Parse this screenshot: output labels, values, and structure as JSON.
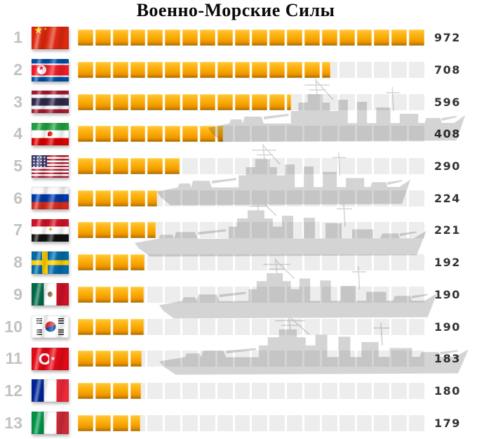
{
  "title": "Военно-Морские Силы",
  "colors": {
    "gold_light": "#ffd24a",
    "gold_top": "#ffc12b",
    "gold_mid": "#f9a602",
    "gold_dark": "#c97f00",
    "track": "#ededed",
    "rank_text": "#c2c2c2",
    "value_text": "#333333",
    "ship_watermark": "#d4d4d4",
    "title_text": "#0a0a0a"
  },
  "chart_data": {
    "type": "bar",
    "orientation": "horizontal",
    "title": "Военно-Морские Силы",
    "xlabel": "",
    "ylabel": "",
    "max_value": 972,
    "segments_total": 20,
    "grid": false,
    "legend": false,
    "watermark": "warship-silhouettes",
    "categories": [
      "China",
      "North Korea",
      "Thailand",
      "Iran",
      "United States",
      "Russia",
      "Egypt",
      "Sweden",
      "Mexico",
      "South Korea",
      "Turkey",
      "France",
      "Italy"
    ],
    "values": [
      972,
      708,
      596,
      408,
      290,
      224,
      221,
      192,
      190,
      190,
      183,
      180,
      179
    ],
    "rows": [
      {
        "rank": "1",
        "country": "China",
        "flag": "cn",
        "value": "972"
      },
      {
        "rank": "2",
        "country": "North Korea",
        "flag": "kp",
        "value": "708"
      },
      {
        "rank": "3",
        "country": "Thailand",
        "flag": "th",
        "value": "596"
      },
      {
        "rank": "4",
        "country": "Iran",
        "flag": "ir",
        "value": "408"
      },
      {
        "rank": "5",
        "country": "United States",
        "flag": "us",
        "value": "290"
      },
      {
        "rank": "6",
        "country": "Russia",
        "flag": "ru",
        "value": "224"
      },
      {
        "rank": "7",
        "country": "Egypt",
        "flag": "eg",
        "value": "221"
      },
      {
        "rank": "8",
        "country": "Sweden",
        "flag": "se",
        "value": "192"
      },
      {
        "rank": "9",
        "country": "Mexico",
        "flag": "mx",
        "value": "190"
      },
      {
        "rank": "10",
        "country": "South Korea",
        "flag": "kr",
        "value": "190"
      },
      {
        "rank": "11",
        "country": "Turkey",
        "flag": "tr",
        "value": "183"
      },
      {
        "rank": "12",
        "country": "France",
        "flag": "fr",
        "value": "180"
      },
      {
        "rank": "13",
        "country": "Italy",
        "flag": "it",
        "value": "179"
      }
    ]
  }
}
